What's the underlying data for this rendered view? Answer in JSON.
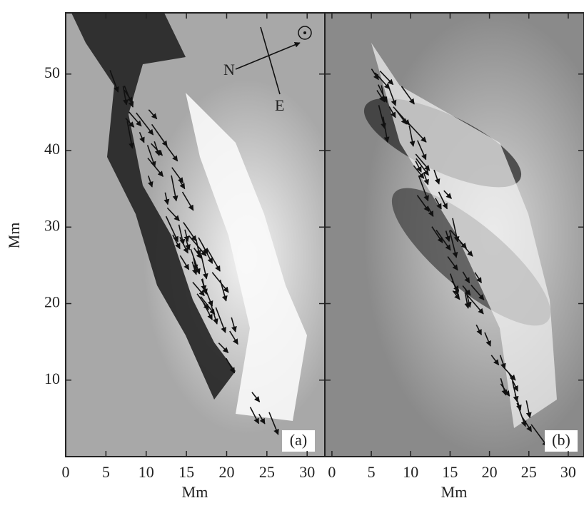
{
  "chart_data": [
    {
      "type": "image",
      "panel_label": "(a)",
      "xlabel": "Mm",
      "ylabel": "Mm",
      "xlim": [
        0,
        32.2
      ],
      "ylim": [
        0,
        58
      ],
      "xticks": [
        0,
        5,
        10,
        15,
        20,
        25,
        30
      ],
      "yticks": [
        10,
        20,
        30,
        40,
        50
      ],
      "annotations": [
        "N",
        "E"
      ]
    },
    {
      "type": "image",
      "panel_label": "(b)",
      "xlabel": "Mm",
      "xlim": [
        -0.9,
        32
      ],
      "ylim": [
        0,
        58
      ],
      "xticks": [
        0,
        5,
        10,
        15,
        20,
        25,
        30
      ],
      "yticks": [
        10,
        20,
        30,
        40,
        50
      ]
    }
  ]
}
